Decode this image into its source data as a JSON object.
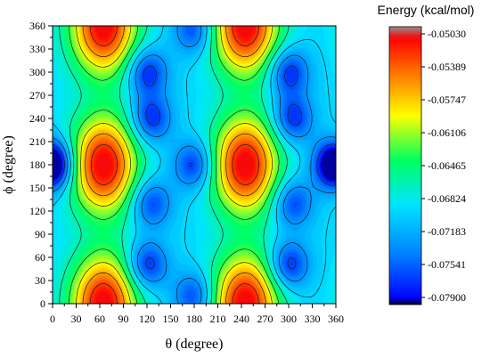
{
  "chart_data": {
    "type": "heatmap",
    "title": "",
    "xlabel": "θ (degree)",
    "ylabel": "ϕ (degree)",
    "xlim": [
      0,
      360
    ],
    "ylim": [
      0,
      360
    ],
    "x_ticks": [
      "0",
      "30",
      "60",
      "90",
      "120",
      "150",
      "180",
      "210",
      "240",
      "270",
      "300",
      "330",
      "360"
    ],
    "y_ticks": [
      "0",
      "30",
      "60",
      "90",
      "120",
      "150",
      "180",
      "210",
      "240",
      "270",
      "300",
      "330",
      "360"
    ],
    "colorbar": {
      "title": "Energy (kcal/mol)",
      "ticks": [
        "-0.05030",
        "-0.05389",
        "-0.05747",
        "-0.06106",
        "-0.06465",
        "-0.06824",
        "-0.07183",
        "-0.07541",
        "-0.07900"
      ],
      "min": -0.079,
      "max": -0.0503,
      "colors": [
        "#000000",
        "#0000ff",
        "#0080ff",
        "#00e5ff",
        "#00ff60",
        "#ffff00",
        "#ff8000",
        "#ff0000",
        "#909090"
      ]
    },
    "maxima": [
      {
        "theta": 65,
        "phi": 180,
        "energy": -0.0506
      },
      {
        "theta": 245,
        "phi": 180,
        "energy": -0.0506
      },
      {
        "theta": 65,
        "phi": 360,
        "energy": -0.0506
      },
      {
        "theta": 245,
        "phi": 360,
        "energy": -0.0506
      },
      {
        "theta": 65,
        "phi": 0,
        "energy": -0.0506
      },
      {
        "theta": 245,
        "phi": 0,
        "energy": -0.0506
      }
    ],
    "minima": [
      {
        "theta": 120,
        "phi": 300,
        "energy": -0.0788
      },
      {
        "theta": 300,
        "phi": 300,
        "energy": -0.0788
      },
      {
        "theta": 125,
        "phi": 240,
        "energy": -0.0785
      },
      {
        "theta": 305,
        "phi": 240,
        "energy": -0.0785
      },
      {
        "theta": 125,
        "phi": 130,
        "energy": -0.0775
      },
      {
        "theta": 305,
        "phi": 130,
        "energy": -0.0775
      },
      {
        "theta": 120,
        "phi": 50,
        "energy": -0.0788
      },
      {
        "theta": 300,
        "phi": 50,
        "energy": -0.0788
      },
      {
        "theta": 180,
        "phi": 180,
        "energy": -0.0783
      },
      {
        "theta": 0,
        "phi": 180,
        "energy": -0.0783
      },
      {
        "theta": 360,
        "phi": 180,
        "energy": -0.0783
      },
      {
        "theta": 180,
        "phi": 10,
        "energy": -0.0775
      },
      {
        "theta": 180,
        "phi": 355,
        "energy": -0.0775
      }
    ]
  }
}
